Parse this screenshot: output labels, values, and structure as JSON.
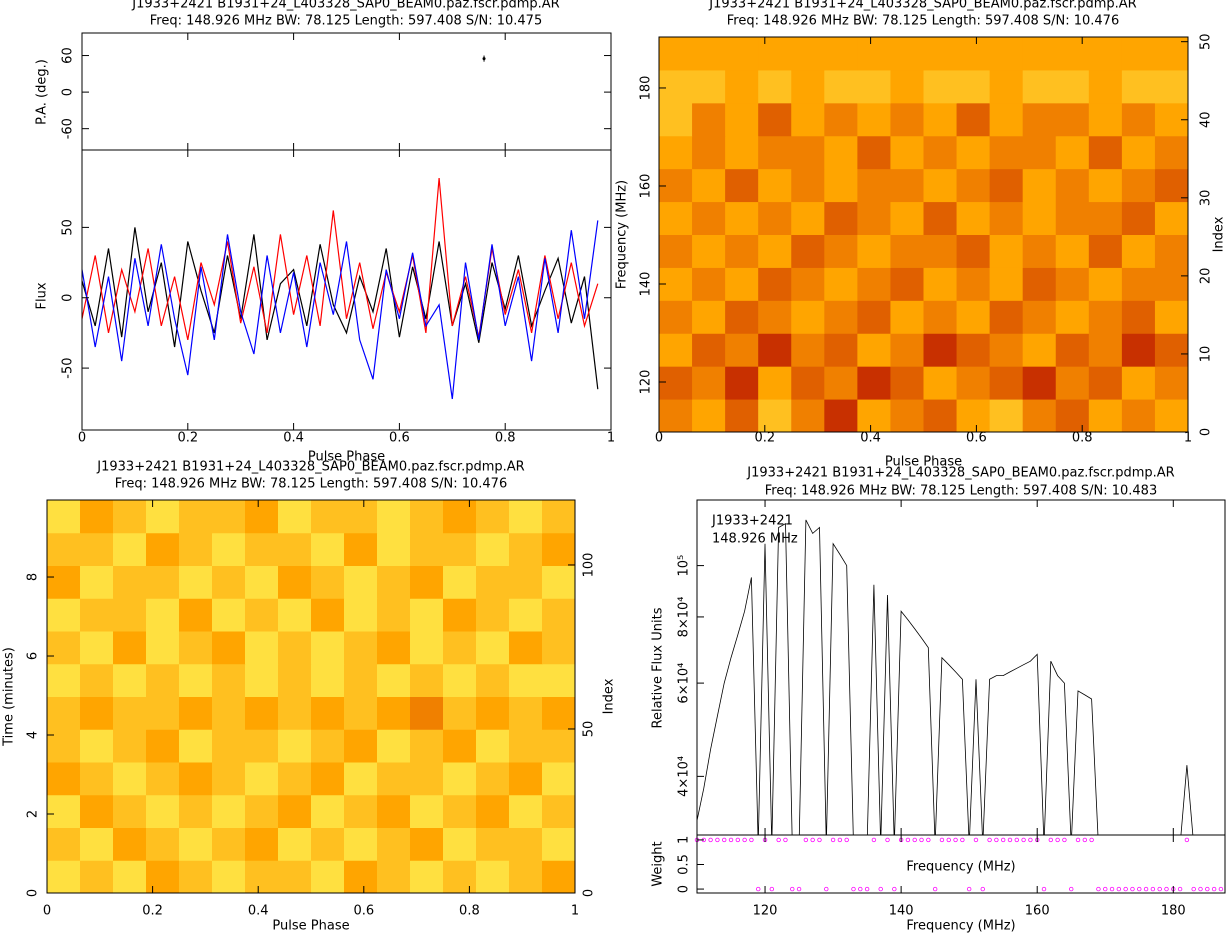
{
  "chart_data": [
    {
      "type": "profile",
      "title": "J1933+2421  B1931+24_L403328_SAP0_BEAM0.paz.fscr.pdmp.AR",
      "subtitle": "Freq: 148.926 MHz BW: 78.125 Length: 597.408 S/N: 10.475",
      "xlabel": "Pulse Phase",
      "xlim": [
        0,
        1
      ],
      "xticks": [
        0,
        0.2,
        0.4,
        0.6,
        0.8,
        1
      ],
      "pa": {
        "ylabel": "P.A. (deg.)",
        "ylim": [
          -95,
          97
        ],
        "yticks": [
          -60,
          0,
          60
        ],
        "x": [
          0.76
        ],
        "values": [
          55
        ],
        "errors": [
          5
        ],
        "color": "#000000"
      },
      "flux": {
        "ylabel": "Flux",
        "ylim": [
          -94,
          105
        ],
        "yticks": [
          -50,
          0,
          50
        ],
        "x": [
          0,
          0.025,
          0.05,
          0.075,
          0.1,
          0.125,
          0.15,
          0.175,
          0.2,
          0.225,
          0.25,
          0.275,
          0.3,
          0.325,
          0.35,
          0.375,
          0.4,
          0.425,
          0.45,
          0.475,
          0.5,
          0.525,
          0.55,
          0.575,
          0.6,
          0.625,
          0.65,
          0.675,
          0.7,
          0.725,
          0.75,
          0.775,
          0.8,
          0.825,
          0.85,
          0.875,
          0.9,
          0.925,
          0.95,
          0.975
        ],
        "series": [
          {
            "color": "#000000",
            "values": [
              12,
              -20,
              35,
              -28,
              50,
              -10,
              25,
              -35,
              40,
              5,
              -25,
              30,
              -15,
              45,
              -30,
              10,
              20,
              -20,
              38,
              -5,
              -25,
              15,
              -10,
              35,
              -28,
              22,
              -15,
              40,
              -20,
              10,
              -32,
              25,
              -8,
              30,
              -20,
              5,
              28,
              -18,
              15,
              -65
            ]
          },
          {
            "color": "#ff0000",
            "values": [
              -15,
              30,
              -25,
              20,
              -10,
              35,
              -20,
              15,
              -30,
              25,
              -5,
              40,
              -18,
              22,
              -25,
              45,
              -12,
              30,
              -20,
              62,
              -15,
              25,
              -22,
              18,
              -10,
              30,
              -25,
              85,
              -20,
              15,
              -28,
              35,
              -12,
              20,
              -25,
              30,
              -15,
              25,
              -20,
              10
            ]
          },
          {
            "color": "#0000ff",
            "values": [
              20,
              -35,
              15,
              -45,
              28,
              -20,
              38,
              -15,
              -55,
              22,
              -30,
              45,
              -10,
              -40,
              30,
              -25,
              18,
              -35,
              25,
              -12,
              40,
              -30,
              -58,
              20,
              -15,
              32,
              -20,
              -5,
              -72,
              25,
              -30,
              38,
              -20,
              15,
              -45,
              28,
              -25,
              48,
              -15,
              55
            ]
          }
        ]
      }
    },
    {
      "type": "heatmap",
      "title": "J1933+2421  B1931+24_L403328_SAP0_BEAM0.paz.fscr.pdmp.AR",
      "subtitle": "Freq: 148.926 MHz BW: 78.125 Length: 597.408 S/N: 10.476",
      "xlabel": "Pulse Phase",
      "xlim": [
        0,
        1
      ],
      "xticks": [
        0,
        0.2,
        0.4,
        0.6,
        0.8,
        1
      ],
      "ylabel": "Frequency (MHz)",
      "ylim": [
        109.8,
        190.4
      ],
      "yticks": [
        120,
        140,
        160,
        180
      ],
      "y2label": "Index",
      "y2lim": [
        0,
        50.6
      ],
      "y2ticks": [
        0,
        10,
        20,
        30,
        40,
        50
      ],
      "zlim": [
        0,
        7
      ],
      "colormap": [
        "#ffff70",
        "#ffe040",
        "#ffc020",
        "#ffa500",
        "#f08000",
        "#e06000",
        "#c83000",
        "#a01000"
      ],
      "z": [
        [
          4,
          3,
          5,
          2,
          4,
          6,
          3,
          4,
          5,
          3,
          2,
          4,
          5,
          3,
          4,
          3
        ],
        [
          5,
          4,
          6,
          3,
          5,
          4,
          6,
          5,
          3,
          4,
          5,
          6,
          4,
          5,
          3,
          4
        ],
        [
          3,
          5,
          4,
          6,
          4,
          5,
          3,
          4,
          6,
          5,
          4,
          3,
          5,
          4,
          6,
          5
        ],
        [
          4,
          3,
          5,
          4,
          3,
          4,
          5,
          3,
          4,
          3,
          5,
          4,
          3,
          4,
          5,
          3
        ],
        [
          3,
          4,
          3,
          5,
          4,
          3,
          4,
          5,
          3,
          4,
          3,
          5,
          4,
          3,
          4,
          4
        ],
        [
          4,
          3,
          4,
          3,
          5,
          4,
          3,
          4,
          4,
          5,
          3,
          4,
          3,
          5,
          3,
          4
        ],
        [
          3,
          4,
          3,
          4,
          3,
          5,
          4,
          3,
          5,
          3,
          4,
          3,
          4,
          4,
          5,
          3
        ],
        [
          4,
          3,
          5,
          3,
          4,
          3,
          4,
          4,
          3,
          4,
          5,
          3,
          4,
          3,
          4,
          5
        ],
        [
          3,
          4,
          3,
          4,
          4,
          3,
          5,
          3,
          4,
          3,
          4,
          4,
          3,
          5,
          3,
          4
        ],
        [
          2,
          4,
          3,
          5,
          3,
          4,
          3,
          4,
          3,
          5,
          3,
          4,
          4,
          3,
          4,
          3
        ],
        [
          2,
          2,
          3,
          2,
          3,
          2,
          2,
          3,
          2,
          2,
          3,
          2,
          2,
          3,
          2,
          2
        ],
        [
          3,
          3,
          3,
          3,
          3,
          3,
          3,
          3,
          3,
          3,
          3,
          3,
          3,
          3,
          3,
          3
        ]
      ]
    },
    {
      "type": "heatmap",
      "title": "J1933+2421  B1931+24_L403328_SAP0_BEAM0.paz.fscr.pdmp.AR",
      "subtitle": "Freq: 148.926 MHz BW: 78.125 Length: 597.408 S/N: 10.476",
      "xlabel": "Pulse Phase",
      "xlim": [
        0,
        1
      ],
      "xticks": [
        0,
        0.2,
        0.4,
        0.6,
        0.8,
        1
      ],
      "ylabel": "Time (minutes)",
      "ylim": [
        0,
        9.95
      ],
      "yticks": [
        0,
        2,
        4,
        6,
        8
      ],
      "y2label": "Index",
      "y2lim": [
        0,
        119.8
      ],
      "y2ticks": [
        0,
        50,
        100
      ],
      "zlim": [
        0,
        7
      ],
      "colormap": [
        "#ffff70",
        "#ffe040",
        "#ffc020",
        "#ffa500",
        "#f08000",
        "#e06000",
        "#c83000",
        "#a01000"
      ],
      "z": [
        [
          1,
          2,
          1,
          3,
          2,
          1,
          2,
          2,
          1,
          3,
          2,
          1,
          2,
          1,
          2,
          3
        ],
        [
          2,
          1,
          3,
          2,
          1,
          2,
          3,
          1,
          2,
          1,
          2,
          3,
          1,
          2,
          2,
          1
        ],
        [
          1,
          3,
          2,
          1,
          2,
          1,
          2,
          3,
          1,
          2,
          3,
          1,
          2,
          3,
          1,
          2
        ],
        [
          3,
          2,
          1,
          2,
          3,
          2,
          1,
          2,
          3,
          1,
          2,
          2,
          1,
          2,
          3,
          1
        ],
        [
          2,
          1,
          2,
          3,
          1,
          2,
          2,
          1,
          2,
          3,
          1,
          2,
          3,
          1,
          2,
          2
        ],
        [
          2,
          3,
          2,
          2,
          3,
          2,
          3,
          2,
          3,
          2,
          3,
          4,
          2,
          3,
          2,
          3
        ],
        [
          1,
          2,
          1,
          2,
          1,
          2,
          1,
          2,
          1,
          2,
          1,
          2,
          1,
          2,
          1,
          1
        ],
        [
          2,
          1,
          3,
          1,
          2,
          3,
          1,
          2,
          1,
          2,
          3,
          1,
          2,
          1,
          3,
          2
        ],
        [
          1,
          2,
          2,
          1,
          3,
          1,
          2,
          1,
          3,
          1,
          2,
          1,
          3,
          2,
          1,
          2
        ],
        [
          3,
          1,
          2,
          2,
          1,
          2,
          1,
          3,
          2,
          1,
          2,
          3,
          1,
          2,
          2,
          1
        ],
        [
          2,
          2,
          1,
          3,
          2,
          1,
          2,
          2,
          1,
          3,
          1,
          2,
          2,
          1,
          2,
          3
        ],
        [
          1,
          3,
          2,
          1,
          2,
          2,
          3,
          1,
          2,
          2,
          1,
          2,
          3,
          2,
          1,
          2
        ]
      ]
    },
    {
      "type": "bandpass",
      "title": "J1933+2421  B1931+24_L403328_SAP0_BEAM0.paz.fscr.pdmp.AR",
      "subtitle": "Freq: 148.926 MHz BW: 78.125 Length: 597.408 S/N: 10.483",
      "annotations": [
        "J1933+2421",
        "148.926 MHz"
      ],
      "xlabel": "Frequency (MHz)",
      "xlim": [
        110,
        187.6
      ],
      "xticks": [
        120,
        140,
        160,
        180
      ],
      "ylabel": "Relative Flux Units",
      "log_y": true,
      "ylim": [
        31000,
        133000
      ],
      "yticks": [
        {
          "value": 40000,
          "label": "4×10⁴"
        },
        {
          "value": 60000,
          "label": "6×10⁴"
        },
        {
          "value": 80000,
          "label": "8×10⁴"
        },
        {
          "value": 100000,
          "label": "10⁵"
        }
      ],
      "color": "#000000",
      "x": [
        110,
        111,
        112,
        113,
        114,
        115,
        116,
        117,
        118,
        119,
        120,
        121,
        122,
        123,
        124,
        125,
        126,
        127,
        128,
        129,
        130,
        131,
        132,
        133,
        134,
        135,
        136,
        137,
        138,
        139,
        140,
        141,
        142,
        143,
        144,
        145,
        146,
        147,
        148,
        149,
        150,
        151,
        152,
        153,
        154,
        155,
        156,
        157,
        158,
        159,
        160,
        161,
        162,
        163,
        164,
        165,
        166,
        167,
        168,
        169,
        170,
        171,
        172,
        173,
        174,
        175,
        176,
        177,
        178,
        179,
        180,
        181,
        182,
        183,
        184,
        185,
        186,
        187
      ],
      "values": [
        33000,
        38000,
        45000,
        52000,
        60000,
        67000,
        74000,
        82000,
        95000,
        0,
        110000,
        0,
        118000,
        120000,
        0,
        0,
        122000,
        115000,
        118000,
        0,
        110000,
        105000,
        100000,
        0,
        0,
        0,
        92000,
        0,
        88000,
        0,
        82000,
        79000,
        76000,
        73000,
        70000,
        0,
        67000,
        65000,
        63000,
        61000,
        0,
        61000,
        0,
        61000,
        62000,
        62000,
        63000,
        64000,
        65000,
        66000,
        68000,
        0,
        66000,
        62000,
        60000,
        0,
        58000,
        57000,
        56000,
        0,
        0,
        0,
        0,
        0,
        0,
        0,
        0,
        0,
        0,
        0,
        0,
        0,
        42000,
        0,
        0,
        0,
        0,
        0
      ],
      "weight_label": "Weight",
      "weight_ylim": [
        -0.08,
        1.1
      ],
      "weight_yticks": [
        0,
        0.5,
        1
      ],
      "weight_color": "#ff00ff",
      "weights": [
        1,
        1,
        1,
        1,
        1,
        1,
        1,
        1,
        1,
        0,
        1,
        0,
        1,
        1,
        0,
        0,
        1,
        1,
        1,
        0,
        1,
        1,
        1,
        0,
        0,
        0,
        1,
        0,
        1,
        0,
        1,
        1,
        1,
        1,
        1,
        0,
        1,
        1,
        1,
        1,
        0,
        1,
        0,
        1,
        1,
        1,
        1,
        1,
        1,
        1,
        1,
        0,
        1,
        1,
        1,
        0,
        1,
        1,
        1,
        0,
        0,
        0,
        0,
        0,
        0,
        0,
        0,
        0,
        0,
        0,
        0,
        0,
        1,
        0,
        0,
        0,
        0,
        0
      ]
    }
  ]
}
